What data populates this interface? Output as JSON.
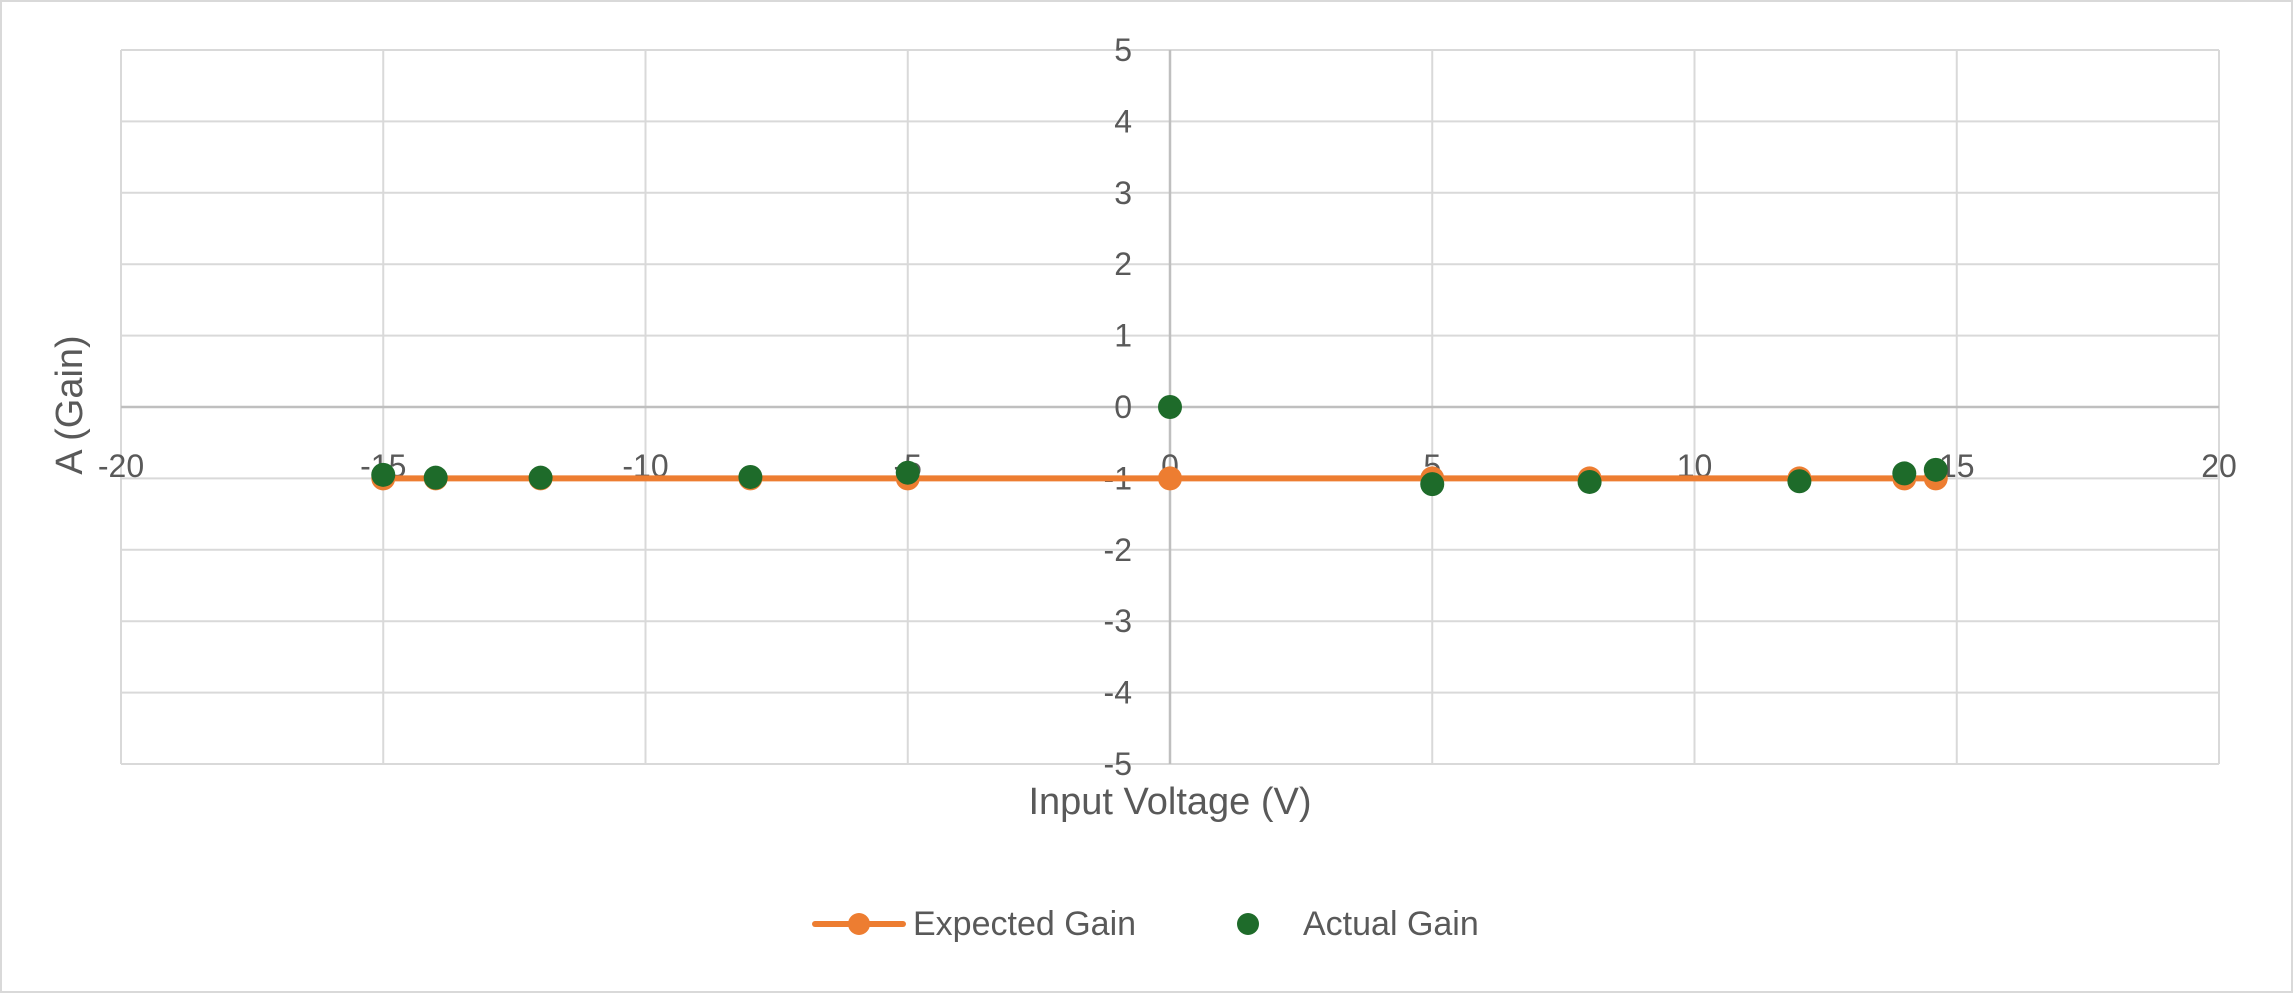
{
  "chart_data": {
    "type": "scatter",
    "title": "",
    "xlabel": "Input Voltage (V)",
    "ylabel": "A (Gain)",
    "xlim": [
      -20,
      20
    ],
    "ylim": [
      -5,
      5
    ],
    "xticks": [
      -20,
      -15,
      -10,
      -5,
      0,
      5,
      10,
      15,
      20
    ],
    "yticks": [
      5,
      4,
      3,
      2,
      1,
      0,
      -1,
      -2,
      -3,
      -4,
      -5
    ],
    "grid": true,
    "legend_position": "bottom",
    "series": [
      {
        "name": "Expected Gain",
        "style": "line-with-markers",
        "color": "#ED7D31",
        "x": [
          -15,
          -14,
          -12,
          -8,
          -5,
          0,
          5,
          8,
          12,
          14,
          14.6
        ],
        "y": [
          -1,
          -1,
          -1,
          -1,
          -1,
          -1,
          -1,
          -1,
          -1,
          -1,
          -1
        ]
      },
      {
        "name": "Actual Gain",
        "style": "markers",
        "color": "#1E6B2A",
        "x": [
          -15,
          -14,
          -12,
          -8,
          -5,
          0,
          5,
          8,
          12,
          14,
          14.6
        ],
        "y": [
          -0.95,
          -0.99,
          -0.99,
          -0.98,
          -0.92,
          0,
          -1.08,
          -1.05,
          -1.04,
          -0.93,
          -0.88
        ]
      }
    ]
  }
}
